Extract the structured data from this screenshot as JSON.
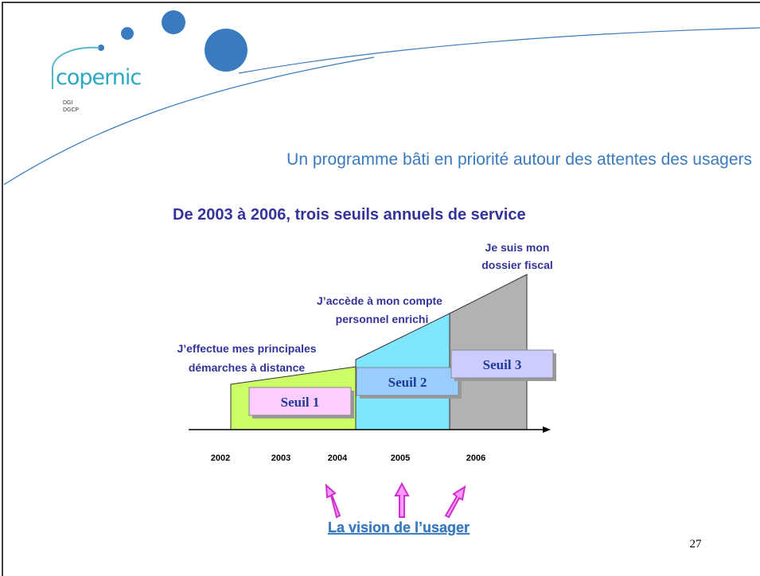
{
  "logo": {
    "name": "copernic",
    "line1": "DGI",
    "line2": "DGCP"
  },
  "subtitle": "Un programme bâti en priorité autour des attentes des usagers",
  "title": "De 2003 à 2006, trois seuils annuels de service",
  "steps": [
    {
      "caption_lines": [
        "J’effectue mes principales",
        "démarches à distance"
      ],
      "label": "Seuil 1"
    },
    {
      "caption_lines": [
        "J’accède à mon compte",
        "personnel  enrichi"
      ],
      "label": "Seuil 2"
    },
    {
      "caption_lines": [
        "Je suis mon",
        "dossier fiscal"
      ],
      "label": "Seuil 3"
    }
  ],
  "years": [
    "2002",
    "2003",
    "2004",
    "2005",
    "2006"
  ],
  "footer_link": "La vision de l’usager",
  "page_number": "27"
}
